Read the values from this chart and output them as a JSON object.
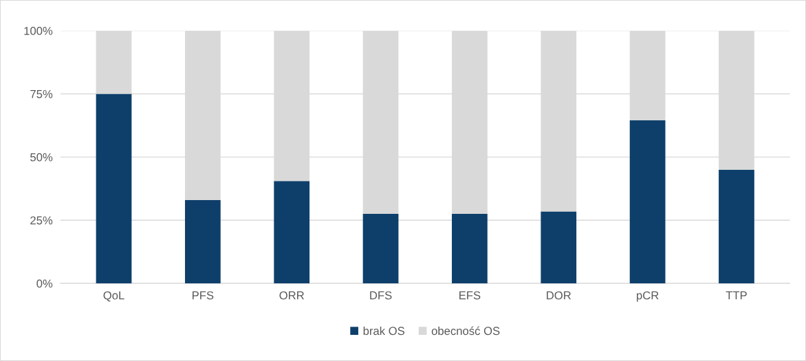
{
  "chart_data": {
    "type": "bar",
    "stacked": true,
    "categories": [
      "QoL",
      "PFS",
      "ORR",
      "DFS",
      "EFS",
      "DOR",
      "pCR",
      "TTP"
    ],
    "series": [
      {
        "name": "brak OS",
        "color": "#0e3f6b",
        "values": [
          75,
          33,
          40.5,
          27.5,
          27.5,
          28.5,
          64.5,
          45
        ]
      },
      {
        "name": "obecność OS",
        "color": "#d9d9d9",
        "values": [
          25,
          67,
          59.5,
          72.5,
          72.5,
          71.5,
          35.5,
          55
        ]
      }
    ],
    "ylim": [
      0,
      100
    ],
    "yticks": [
      {
        "value": 0,
        "label": "0%"
      },
      {
        "value": 25,
        "label": "25%"
      },
      {
        "value": 50,
        "label": "50%"
      },
      {
        "value": 75,
        "label": "75%"
      },
      {
        "value": 100,
        "label": "100%"
      }
    ],
    "grid": "y",
    "legend": "bottom"
  }
}
